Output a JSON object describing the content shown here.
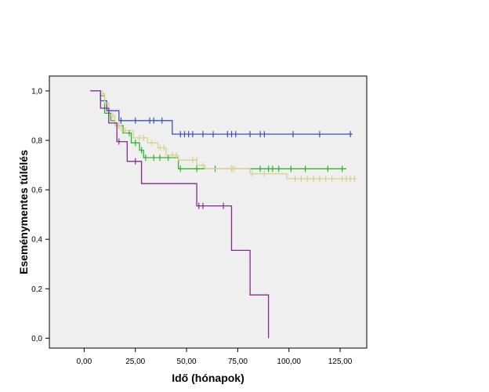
{
  "chart_data": {
    "type": "line",
    "subtype": "kaplan-meier",
    "title": "",
    "xlabel": "Idő (hónapok)",
    "ylabel": "Eseménymentes túlélés",
    "xlim": [
      -17,
      138
    ],
    "ylim": [
      -0.04,
      1.06
    ],
    "x_ticks": [
      0,
      25,
      50,
      75,
      100,
      125
    ],
    "x_tick_labels": [
      "0,00",
      "25,00",
      "50,00",
      "75,00",
      "100,00",
      "125,00"
    ],
    "y_ticks": [
      0,
      0.2,
      0.4,
      0.6,
      0.8,
      1.0
    ],
    "y_tick_labels": [
      "0,0",
      "0,2",
      "0,4",
      "0,6",
      "0,8",
      "1,0"
    ],
    "grid": false,
    "legend": "none",
    "plot_background": "#efefef",
    "series": [
      {
        "color": "#3b52b5",
        "steps": [
          [
            3,
            1.0
          ],
          [
            8,
            1.0
          ],
          [
            8,
            0.96
          ],
          [
            11,
            0.96
          ],
          [
            11,
            0.92
          ],
          [
            17,
            0.92
          ],
          [
            17,
            0.88
          ],
          [
            43,
            0.88
          ],
          [
            43,
            0.825
          ],
          [
            131,
            0.825
          ]
        ],
        "censored": [
          [
            18,
            0.88
          ],
          [
            25,
            0.88
          ],
          [
            32,
            0.88
          ],
          [
            34,
            0.88
          ],
          [
            38,
            0.88
          ],
          [
            47,
            0.825
          ],
          [
            49,
            0.825
          ],
          [
            51,
            0.825
          ],
          [
            53,
            0.825
          ],
          [
            58,
            0.825
          ],
          [
            63,
            0.825
          ],
          [
            70,
            0.825
          ],
          [
            72,
            0.825
          ],
          [
            74,
            0.825
          ],
          [
            81,
            0.825
          ],
          [
            86,
            0.825
          ],
          [
            88,
            0.825
          ],
          [
            102,
            0.825
          ],
          [
            115,
            0.825
          ],
          [
            130,
            0.825
          ]
        ]
      },
      {
        "color": "#2db22d",
        "steps": [
          [
            8,
            0.98
          ],
          [
            10,
            0.98
          ],
          [
            10,
            0.91
          ],
          [
            13,
            0.91
          ],
          [
            13,
            0.88
          ],
          [
            15,
            0.88
          ],
          [
            15,
            0.86
          ],
          [
            19,
            0.86
          ],
          [
            19,
            0.83
          ],
          [
            23,
            0.83
          ],
          [
            23,
            0.79
          ],
          [
            27,
            0.79
          ],
          [
            27,
            0.76
          ],
          [
            29,
            0.76
          ],
          [
            29,
            0.73
          ],
          [
            46,
            0.73
          ],
          [
            46,
            0.685
          ],
          [
            128,
            0.685
          ]
        ],
        "censored": [
          [
            17,
            0.86
          ],
          [
            22,
            0.83
          ],
          [
            25,
            0.79
          ],
          [
            28,
            0.76
          ],
          [
            30,
            0.73
          ],
          [
            34,
            0.73
          ],
          [
            37,
            0.73
          ],
          [
            41,
            0.73
          ],
          [
            47,
            0.685
          ],
          [
            55,
            0.685
          ],
          [
            64,
            0.685
          ],
          [
            72,
            0.685
          ],
          [
            86,
            0.685
          ],
          [
            90,
            0.685
          ],
          [
            92,
            0.685
          ],
          [
            95,
            0.685
          ],
          [
            101,
            0.685
          ],
          [
            108,
            0.685
          ],
          [
            119,
            0.685
          ],
          [
            126,
            0.685
          ]
        ]
      },
      {
        "color": "#d8d08c",
        "steps": [
          [
            8,
            0.99
          ],
          [
            10,
            0.99
          ],
          [
            10,
            0.95
          ],
          [
            12,
            0.95
          ],
          [
            12,
            0.9
          ],
          [
            15,
            0.9
          ],
          [
            15,
            0.86
          ],
          [
            18,
            0.86
          ],
          [
            18,
            0.84
          ],
          [
            24,
            0.84
          ],
          [
            24,
            0.81
          ],
          [
            31,
            0.81
          ],
          [
            31,
            0.79
          ],
          [
            36,
            0.79
          ],
          [
            36,
            0.77
          ],
          [
            40,
            0.77
          ],
          [
            40,
            0.74
          ],
          [
            46,
            0.74
          ],
          [
            46,
            0.72
          ],
          [
            55,
            0.72
          ],
          [
            55,
            0.7
          ],
          [
            59,
            0.7
          ],
          [
            59,
            0.685
          ],
          [
            81,
            0.685
          ],
          [
            81,
            0.665
          ],
          [
            99,
            0.665
          ],
          [
            99,
            0.645
          ],
          [
            133,
            0.645
          ]
        ],
        "censored": [
          [
            9,
            0.99
          ],
          [
            14,
            0.9
          ],
          [
            16,
            0.86
          ],
          [
            17,
            0.86
          ],
          [
            20,
            0.84
          ],
          [
            27,
            0.81
          ],
          [
            29,
            0.81
          ],
          [
            33,
            0.79
          ],
          [
            37,
            0.77
          ],
          [
            39,
            0.77
          ],
          [
            43,
            0.74
          ],
          [
            45,
            0.74
          ],
          [
            53,
            0.72
          ],
          [
            55,
            0.72
          ],
          [
            58,
            0.7
          ],
          [
            72,
            0.685
          ],
          [
            73,
            0.685
          ],
          [
            82,
            0.665
          ],
          [
            88,
            0.665
          ],
          [
            103,
            0.645
          ],
          [
            106,
            0.645
          ],
          [
            109,
            0.645
          ],
          [
            112,
            0.645
          ],
          [
            115,
            0.645
          ],
          [
            118,
            0.645
          ],
          [
            121,
            0.645
          ],
          [
            126,
            0.645
          ],
          [
            128,
            0.645
          ],
          [
            130,
            0.645
          ],
          [
            132,
            0.645
          ]
        ]
      },
      {
        "color": "#862b8e",
        "steps": [
          [
            3,
            1.0
          ],
          [
            8,
            1.0
          ],
          [
            8,
            0.93
          ],
          [
            12,
            0.93
          ],
          [
            12,
            0.87
          ],
          [
            16,
            0.87
          ],
          [
            16,
            0.795
          ],
          [
            21,
            0.795
          ],
          [
            21,
            0.715
          ],
          [
            28,
            0.715
          ],
          [
            28,
            0.625
          ],
          [
            55,
            0.625
          ],
          [
            55,
            0.535
          ],
          [
            72,
            0.535
          ],
          [
            72,
            0.355
          ],
          [
            81,
            0.355
          ],
          [
            81,
            0.175
          ],
          [
            90,
            0.175
          ],
          [
            90,
            0.0
          ]
        ],
        "censored": [
          [
            17,
            0.795
          ],
          [
            25,
            0.715
          ],
          [
            56,
            0.535
          ],
          [
            58,
            0.535
          ],
          [
            68,
            0.535
          ]
        ]
      }
    ]
  }
}
